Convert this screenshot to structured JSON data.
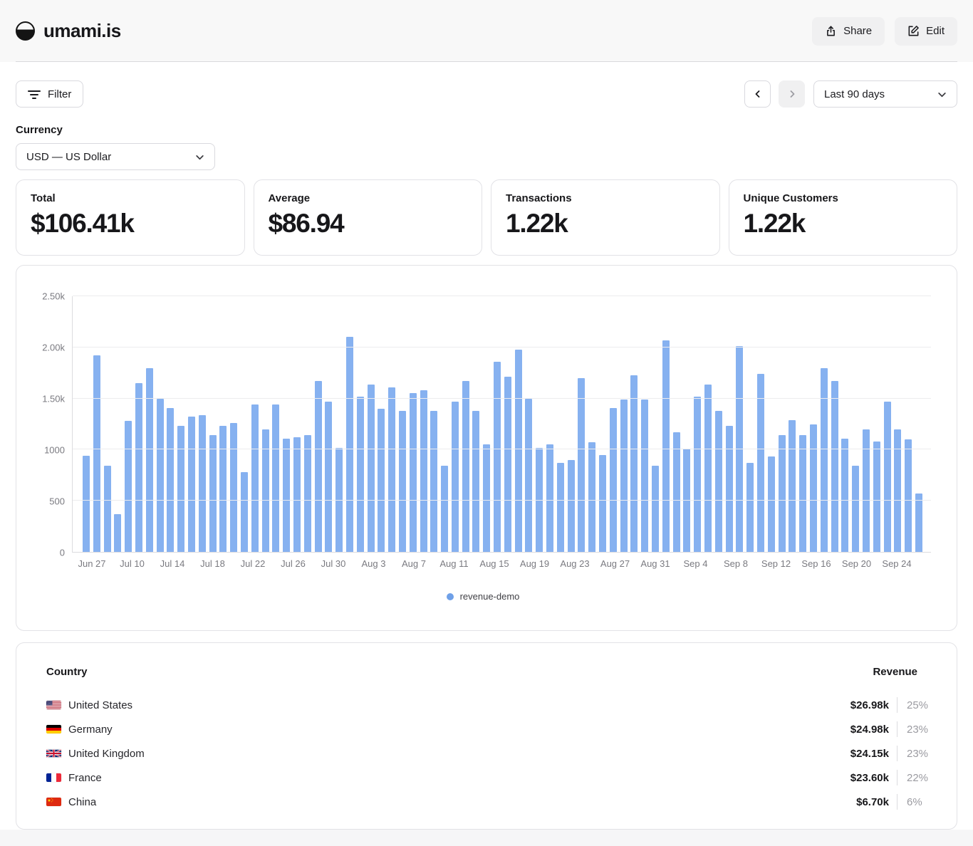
{
  "header": {
    "app_title": "umami.is",
    "share_label": "Share",
    "edit_label": "Edit"
  },
  "toolbar": {
    "filter_label": "Filter",
    "date_range": "Last 90 days"
  },
  "currency": {
    "label": "Currency",
    "selected": "USD — US Dollar"
  },
  "stats": [
    {
      "label": "Total",
      "value": "$106.41k"
    },
    {
      "label": "Average",
      "value": "$86.94"
    },
    {
      "label": "Transactions",
      "value": "1.22k"
    },
    {
      "label": "Unique Customers",
      "value": "1.22k"
    }
  ],
  "chart_data": {
    "type": "bar",
    "series": [
      {
        "name": "revenue-demo",
        "values": [
          940,
          1920,
          845,
          370,
          1280,
          1650,
          1800,
          1500,
          1410,
          1230,
          1320,
          1340,
          1140,
          1230,
          1260,
          780,
          1440,
          1200,
          1440,
          1110,
          1120,
          1140,
          1670,
          1470,
          1020,
          2100,
          1520,
          1640,
          1400,
          1610,
          1380,
          1550,
          1580,
          1380,
          840,
          1470,
          1670,
          1380,
          1050,
          1860,
          1710,
          1980,
          1500,
          1020,
          1050,
          870,
          900,
          1700,
          1070,
          950,
          1410,
          1490,
          1730,
          1490,
          840,
          2070,
          1170,
          1010,
          1520,
          1640,
          1380,
          1230,
          2010,
          870,
          1740,
          930,
          1140,
          1290,
          1140,
          1250,
          1800,
          1670,
          1110,
          840,
          1200,
          1080,
          1470,
          1200,
          1100,
          570
        ]
      }
    ],
    "x_tick_labels": [
      "Jun 27",
      "Jul 10",
      "Jul 14",
      "Jul 18",
      "Jul 22",
      "Jul 26",
      "Jul 30",
      "Aug 3",
      "Aug 7",
      "Aug 11",
      "Aug 15",
      "Aug 19",
      "Aug 23",
      "Aug 27",
      "Aug 31",
      "Sep 4",
      "Sep 8",
      "Sep 12",
      "Sep 16",
      "Sep 20",
      "Sep 24"
    ],
    "y_tick_labels": [
      "0",
      "500",
      "1000",
      "1.50k",
      "2.00k",
      "2.50k"
    ],
    "ylim": [
      0,
      2500
    ],
    "xlabel": "",
    "ylabel": "",
    "grid": "horizontal",
    "legend_position": "bottom",
    "bar_color": "#86b1f0",
    "legend_dot_color": "#6fa0e8",
    "legend_label": "revenue-demo"
  },
  "country_table": {
    "country_header": "Country",
    "revenue_header": "Revenue",
    "rows": [
      {
        "country": "United States",
        "flag": "us",
        "revenue": "$26.98k",
        "percent": "25%"
      },
      {
        "country": "Germany",
        "flag": "de",
        "revenue": "$24.98k",
        "percent": "23%"
      },
      {
        "country": "United Kingdom",
        "flag": "gb",
        "revenue": "$24.15k",
        "percent": "23%"
      },
      {
        "country": "France",
        "flag": "fr",
        "revenue": "$23.60k",
        "percent": "22%"
      },
      {
        "country": "China",
        "flag": "cn",
        "revenue": "$6.70k",
        "percent": "6%"
      }
    ]
  },
  "colors": {
    "bar": "#86b1f0",
    "legend_dot": "#6fa0e8",
    "card_border": "#e2e2e6",
    "muted_text": "#7a7a80",
    "header_bg": "#f8f8f8"
  }
}
